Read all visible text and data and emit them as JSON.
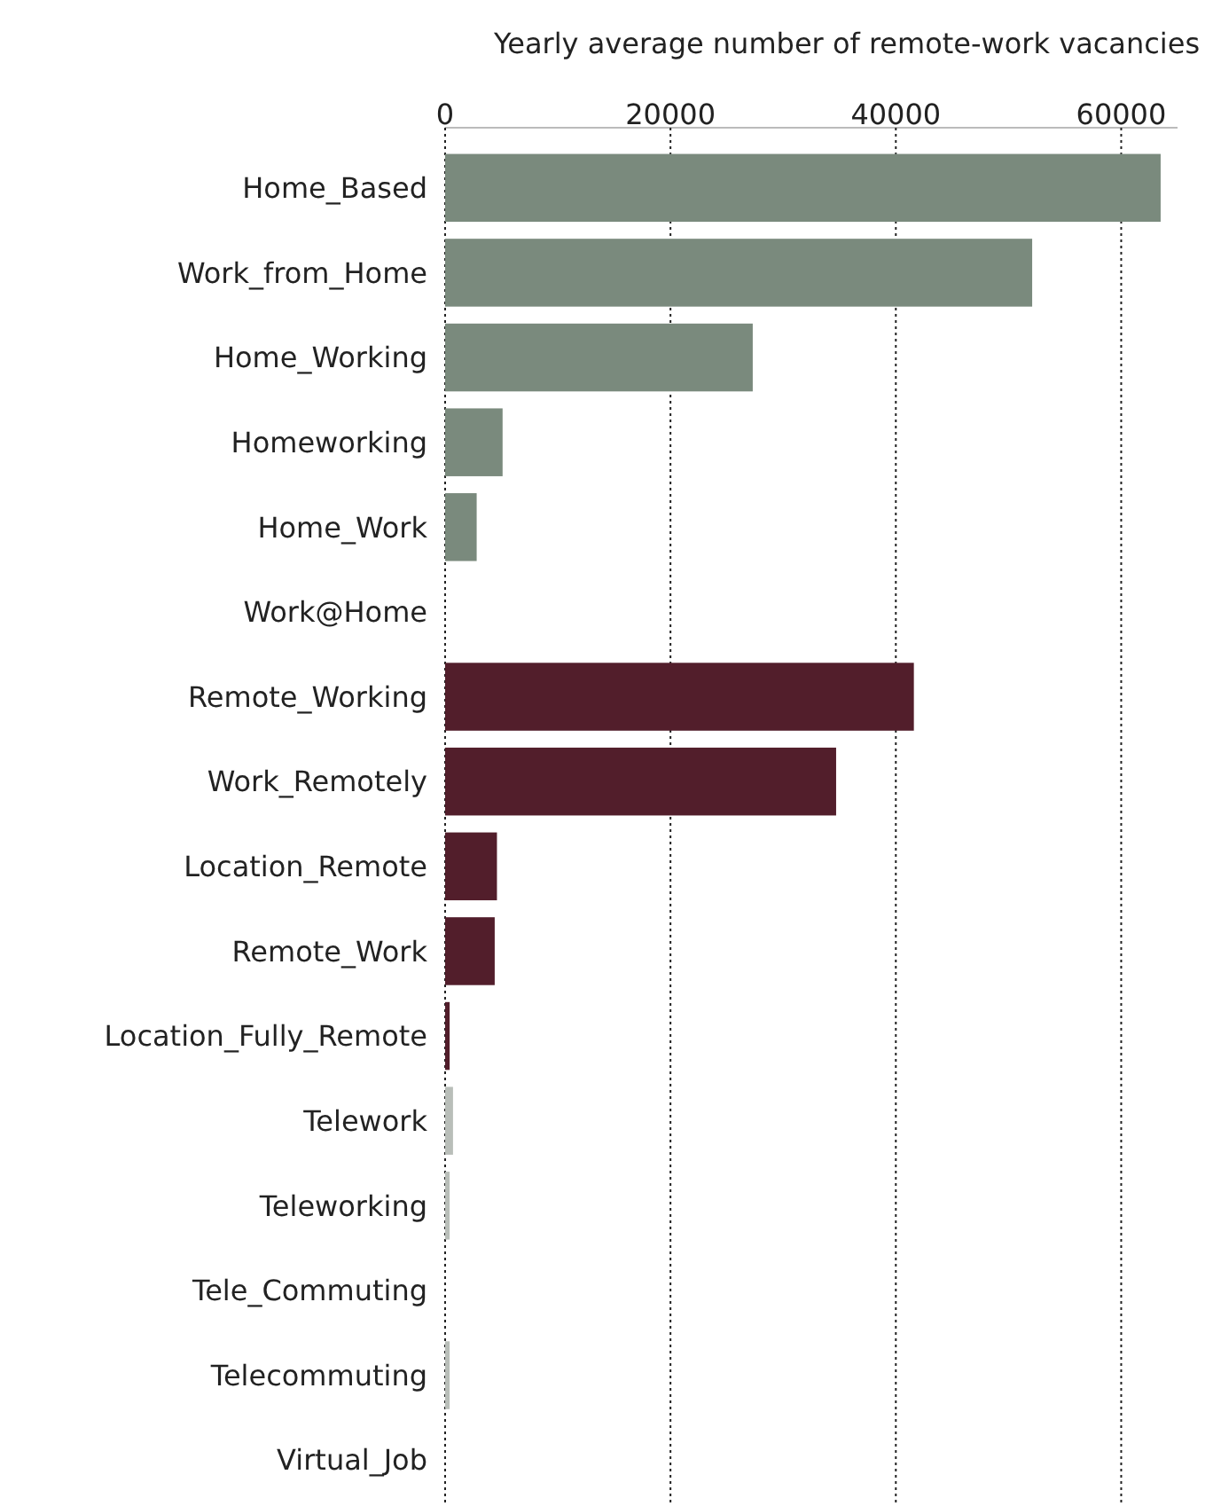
{
  "chart_data": {
    "type": "bar",
    "orientation": "horizontal",
    "xlabel": "Yearly average number of remote-work vacancies",
    "categories": [
      "Home_Based",
      "Work_from_Home",
      "Home_Working",
      "Homeworking",
      "Home_Work",
      "Work@Home",
      "Remote_Working",
      "Work_Remotely",
      "Location_Remote",
      "Remote_Work",
      "Location_Fully_Remote",
      "Telework",
      "Teleworking",
      "Tele_Commuting",
      "Telecommuting",
      "Virtual_Job"
    ],
    "values": [
      63500,
      52100,
      27300,
      5100,
      2800,
      0,
      41600,
      34700,
      4600,
      4400,
      400,
      700,
      400,
      0,
      400,
      0
    ],
    "colors": [
      "#7a8a7d",
      "#7a8a7d",
      "#7a8a7d",
      "#7a8a7d",
      "#7a8a7d",
      "#7a8a7d",
      "#521e2b",
      "#521e2b",
      "#521e2b",
      "#521e2b",
      "#521e2b",
      "#b9beb9",
      "#b9beb9",
      "#b9beb9",
      "#b9beb9",
      "#b9beb9"
    ],
    "xlim": [
      0,
      65000
    ],
    "xticks": [
      0,
      20000,
      40000,
      60000
    ],
    "grid": "x"
  }
}
